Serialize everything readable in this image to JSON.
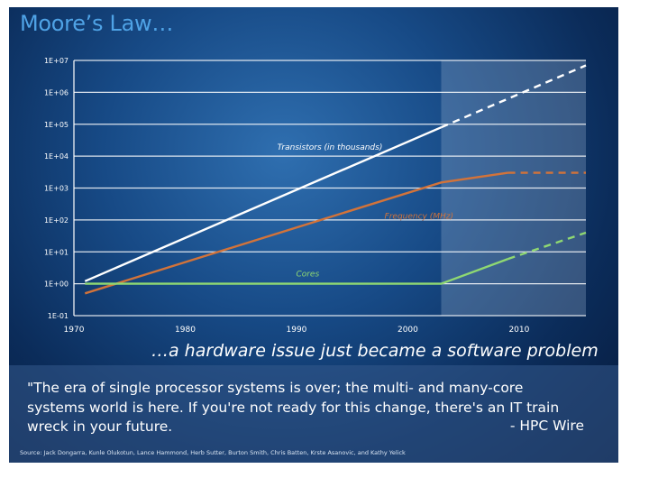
{
  "slide": {
    "title": "Moore’s Law…",
    "tagline": "…a hardware issue just became a software problem",
    "quote_lines": [
      "\"The era of single processor systems is over; the multi-  and many-core",
      "systems world is here. If you're not ready for this change, there's an IT train",
      "wreck in your future."
    ],
    "quote_attribution": "- HPC Wire",
    "source": "Source:  Jack Dongarra, Kunle Olukotun, Lance Hammond, Herb Sutter, Burton Smith, Chris Batten, Krste Asanovic, and Kathy Yelick"
  },
  "chart_data": {
    "type": "line",
    "title": "",
    "xlabel": "",
    "ylabel": "",
    "x_range": [
      1970,
      2016
    ],
    "y_scale": "log",
    "y_range": [
      0.1,
      10000000
    ],
    "x_ticks": [
      "1970",
      "1980",
      "1990",
      "2000",
      "2010"
    ],
    "x_tick_values": [
      1970,
      1980,
      1990,
      2000,
      2010
    ],
    "y_ticks": [
      "1E-01",
      "1E+00",
      "1E+01",
      "1E+02",
      "1E+03",
      "1E+04",
      "1E+05",
      "1E+06",
      "1E+07"
    ],
    "y_tick_values": [
      0.1,
      1,
      10,
      100,
      1000,
      10000,
      100000,
      1000000,
      10000000
    ],
    "grid": true,
    "projection_region_start": 2003,
    "series": [
      {
        "name": "Transistors  (in thousands)",
        "color": "#ffffff",
        "points": [
          [
            1971,
            1.2
          ],
          [
            2003,
            80000
          ]
        ],
        "projected": [
          [
            2003,
            80000
          ],
          [
            2016,
            7000000
          ]
        ]
      },
      {
        "name": "Frequency  (MHz)",
        "color": "#d2733a",
        "points": [
          [
            1971,
            0.5
          ],
          [
            2003,
            1500
          ],
          [
            2009,
            3000
          ]
        ],
        "projected": [
          [
            2009,
            3000
          ],
          [
            2016,
            3000
          ]
        ]
      },
      {
        "name": "Cores",
        "color": "#8fd872",
        "points": [
          [
            1971,
            1
          ],
          [
            2003,
            1
          ],
          [
            2009,
            6
          ]
        ],
        "projected": [
          [
            2009,
            6
          ],
          [
            2016,
            40
          ]
        ]
      }
    ],
    "series_labels": [
      "Transistors  (in thousands)",
      "Frequency  (MHz)",
      "Cores"
    ]
  }
}
